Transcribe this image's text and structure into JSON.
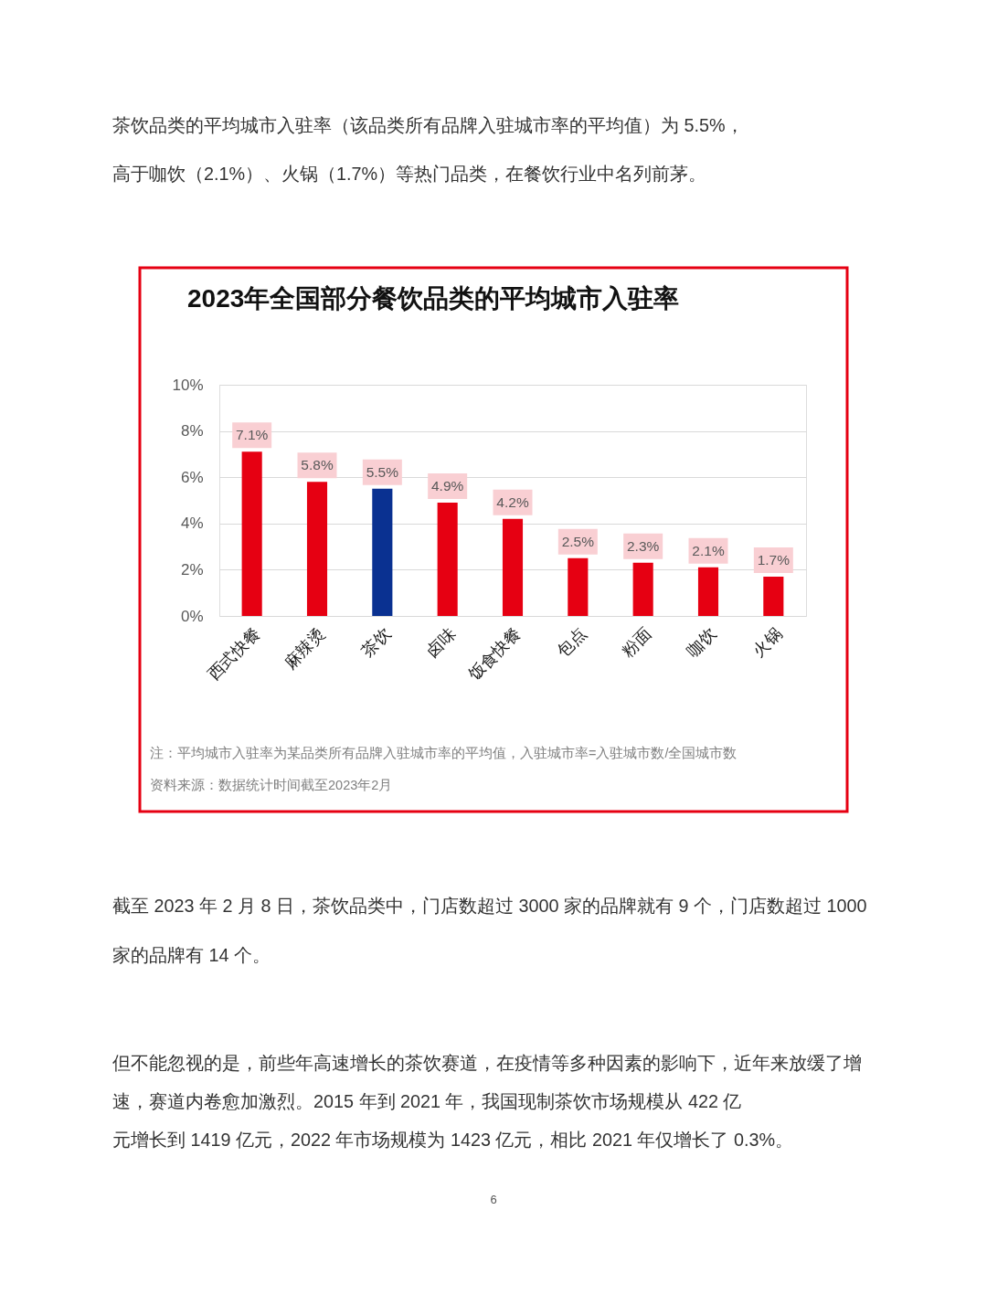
{
  "chart_data": {
    "type": "bar",
    "title": "2023年全国部分餐饮品类的平均城市入驻率",
    "categories": [
      "西式快餐",
      "麻辣烫",
      "茶饮",
      "卤味",
      "饭食快餐",
      "包点",
      "粉面",
      "咖饮",
      "火锅"
    ],
    "values": [
      7.1,
      5.8,
      5.5,
      4.9,
      4.2,
      2.5,
      2.3,
      2.1,
      1.7
    ],
    "colors": [
      "#e60012",
      "#e60012",
      "#0a3191",
      "#e60012",
      "#e60012",
      "#e60012",
      "#e60012",
      "#e60012",
      "#e60012"
    ],
    "value_labels": [
      "7.1%",
      "5.8%",
      "5.5%",
      "4.9%",
      "4.2%",
      "2.5%",
      "2.3%",
      "2.1%",
      "1.7%"
    ],
    "ylim": [
      0,
      10
    ],
    "yticks": [
      {
        "value": 0,
        "label": "0%"
      },
      {
        "value": 2,
        "label": "2%"
      },
      {
        "value": 4,
        "label": "4%"
      },
      {
        "value": 6,
        "label": "6%"
      },
      {
        "value": 8,
        "label": "8%"
      },
      {
        "value": 10,
        "label": "10%"
      }
    ],
    "grid": "y",
    "annotations": [
      "茶饮品类的平均城市入驻率（该品类所有品牌入驻城市率的平均值）为 5.5%，",
      "高于咖饮（2.1%）、火锅（1.7%）等热门品类，在餐饮行业中名列前茅。",
      "注：平均城市入驻率为某品类所有品牌入驻城市率的平均值，入驻城市率=入驻城市数/全国城市数",
      "资料来源：数据统计时间截至2023年2月",
      "截至 2023 年 2 月 8 日，茶饮品类中，门店数超过 3000 家的品牌就有 9 个，门店数超过 1000",
      "家的品牌有 14 个。",
      "但不能忽视的是，前些年高速增长的茶饮赛道，在疫情等多种因素的影响下，近年来放缓了增",
      "速，赛道内卷愈加激烈。2015 年到 2021 年，我国现制茶饮市场规模从 422 亿",
      "元增长到 1419 亿元，2022 年市场规模为 1423 亿元，相比 2021 年仅增长了 0.3%。",
      "6"
    ]
  }
}
